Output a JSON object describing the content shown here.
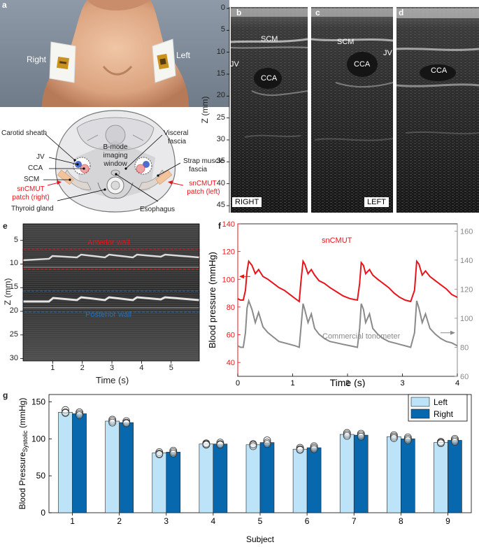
{
  "panels": {
    "a": {
      "letter": "a",
      "photo_labels": {
        "right": "Right",
        "left": "Left"
      },
      "diagram": {
        "window_label": [
          "B-mode",
          "imaging",
          "window"
        ],
        "labels_left": [
          "Carotid sheath",
          "JV",
          "CCA",
          "SCM"
        ],
        "patch_right": [
          "snCMUT",
          "patch (right)"
        ],
        "thyroid": "Thyroid gland",
        "labels_right": [
          "Visceral",
          "fascia"
        ],
        "strap": [
          "Strap muscle",
          "fascia"
        ],
        "patch_left": [
          "snCMUT",
          "patch (left)"
        ],
        "esophagus": "Esophagus"
      }
    },
    "b": {
      "letter": "b",
      "tags": {
        "scm": "SCM",
        "jv": "JV",
        "cca": "CCA"
      },
      "corner": "RIGHT"
    },
    "c": {
      "letter": "c",
      "tags": {
        "scm": "SCM",
        "jv": "JV",
        "cca": "CCA"
      },
      "corner": "LEFT"
    },
    "d": {
      "letter": "d",
      "tags": {
        "cca": "CCA"
      }
    },
    "bcd_axis": {
      "label": "Z (mm)",
      "ticks": [
        "0",
        "5",
        "10",
        "15",
        "20",
        "25",
        "30",
        "35",
        "40",
        "45"
      ]
    },
    "e": {
      "letter": "e",
      "anterior": "Anterior wall",
      "posterior": "Posterior wall",
      "ylabel": "Z (mm)",
      "yticks": [
        "5",
        "10",
        "15",
        "20",
        "25",
        "30"
      ],
      "xlabel": "Time (s)",
      "xticks": [
        "1",
        "2",
        "3",
        "4",
        "5"
      ]
    },
    "f": {
      "letter": "f",
      "series_labels": {
        "sncmut": "snCMUT",
        "tonometer": "Commercial tonometer"
      }
    },
    "g": {
      "letter": "g"
    }
  },
  "colors": {
    "red": "#e8141b",
    "gray": "#8a8a8a",
    "light_blue": "#bde3f8",
    "dark_blue": "#0868ad",
    "blue_dashed": "#2b6fb0"
  },
  "chart_data": [
    {
      "id": "f",
      "type": "line",
      "xlabel": "Time (s)",
      "ylabel": "Blood pressure (mmHg)",
      "xlim": [
        0,
        4
      ],
      "ylim_left": [
        30,
        140
      ],
      "ylim_right": [
        60,
        165
      ],
      "x_ticks": [
        "0",
        "1",
        "2",
        "3",
        "4"
      ],
      "y_ticks_left": [
        "40",
        "60",
        "80",
        "100",
        "120",
        "140"
      ],
      "y_ticks_right": [
        "60",
        "80",
        "100",
        "120",
        "140",
        "160"
      ],
      "series": [
        {
          "name": "snCMUT",
          "axis": "left",
          "x": [
            0,
            0.05,
            0.1,
            0.14,
            0.17,
            0.2,
            0.26,
            0.32,
            0.38,
            0.46,
            0.55,
            0.65,
            0.75,
            0.85,
            0.95,
            1.05,
            1.12,
            1.15,
            1.19,
            1.22,
            1.28,
            1.34,
            1.4,
            1.48,
            1.58,
            1.68,
            1.8,
            1.92,
            2.05,
            2.18,
            2.22,
            2.25,
            2.29,
            2.33,
            2.4,
            2.46,
            2.55,
            2.65,
            2.75,
            2.85,
            2.95,
            3.05,
            3.15,
            3.22,
            3.26,
            3.3,
            3.36,
            3.42,
            3.5,
            3.6,
            3.7,
            3.8,
            3.9,
            4.0
          ],
          "y": [
            86,
            85,
            85,
            92,
            106,
            113,
            110,
            104,
            107,
            102,
            100,
            97,
            94,
            92,
            89,
            86,
            84,
            98,
            113,
            111,
            104,
            107,
            103,
            99,
            97,
            94,
            91,
            88,
            86,
            85,
            97,
            112,
            110,
            104,
            107,
            103,
            100,
            97,
            94,
            90,
            87,
            85,
            84,
            92,
            113,
            111,
            103,
            106,
            102,
            99,
            96,
            93,
            89,
            87
          ]
        },
        {
          "name": "Commercial tonometer",
          "axis": "right",
          "x": [
            0,
            0.05,
            0.1,
            0.14,
            0.17,
            0.2,
            0.26,
            0.32,
            0.38,
            0.46,
            0.55,
            0.65,
            0.75,
            0.85,
            0.95,
            1.05,
            1.12,
            1.15,
            1.19,
            1.22,
            1.28,
            1.34,
            1.4,
            1.48,
            1.58,
            1.68,
            1.8,
            1.92,
            2.05,
            2.18,
            2.22,
            2.25,
            2.29,
            2.33,
            2.4,
            2.46,
            2.55,
            2.65,
            2.75,
            2.85,
            2.95,
            3.05,
            3.15,
            3.22,
            3.26,
            3.3,
            3.36,
            3.42,
            3.5,
            3.6,
            3.7,
            3.8,
            3.9,
            4.0
          ],
          "y": [
            81,
            80,
            80,
            90,
            107,
            112,
            106,
            97,
            104,
            94,
            90,
            87,
            84,
            83,
            82,
            81,
            80,
            93,
            110,
            106,
            97,
            103,
            93,
            89,
            86,
            84,
            83,
            82,
            81,
            80,
            93,
            110,
            106,
            97,
            103,
            93,
            89,
            86,
            84,
            83,
            82,
            81,
            80,
            90,
            112,
            107,
            97,
            103,
            93,
            89,
            86,
            84,
            83,
            81
          ]
        }
      ]
    },
    {
      "id": "g",
      "type": "bar",
      "xlabel": "Subject",
      "ylabel": "Blood Pressure",
      "ylabel_sub": "Systolic",
      "ylabel_unit": " (mmHg)",
      "ylim": [
        0,
        160
      ],
      "y_ticks": [
        "0",
        "50",
        "100",
        "150"
      ],
      "categories": [
        "1",
        "2",
        "3",
        "4",
        "5",
        "6",
        "7",
        "8",
        "9"
      ],
      "series": [
        {
          "name": "Left",
          "values": [
            136,
            124,
            81,
            93,
            92,
            86,
            106,
            103,
            95
          ],
          "points": [
            [
              139,
              136,
              135
            ],
            [
              126,
              124,
              122
            ],
            [
              82,
              80,
              79
            ],
            [
              94,
              93,
              92
            ],
            [
              93,
              92,
              90
            ],
            [
              88,
              86,
              85
            ],
            [
              108,
              106,
              104
            ],
            [
              105,
              103,
              101
            ],
            [
              96,
              95,
              94
            ]
          ]
        },
        {
          "name": "Right",
          "values": [
            134,
            122,
            82,
            93,
            95,
            88,
            105,
            100,
            98
          ],
          "points": [
            [
              136,
              134,
              132
            ],
            [
              124,
              122,
              121
            ],
            [
              84,
              82,
              80
            ],
            [
              95,
              93,
              92
            ],
            [
              98,
              95,
              93
            ],
            [
              90,
              88,
              86
            ],
            [
              107,
              105,
              103
            ],
            [
              102,
              100,
              98
            ],
            [
              100,
              98,
              96
            ]
          ]
        }
      ]
    }
  ]
}
